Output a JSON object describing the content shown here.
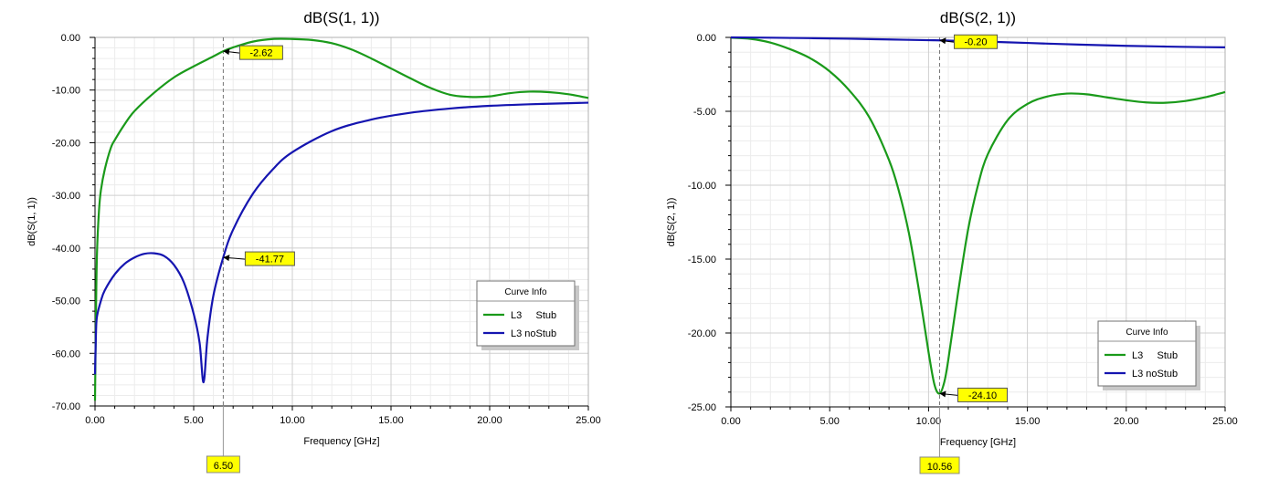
{
  "chart_data": [
    {
      "type": "line",
      "title": "dB(S(1, 1))",
      "xlabel": "Frequency [GHz]",
      "ylabel": "dB(S(1, 1))",
      "xlim": [
        0,
        25
      ],
      "ylim": [
        -70,
        0
      ],
      "xticks": [
        "0.00",
        "5.00",
        "10.00",
        "15.00",
        "20.00",
        "25.00"
      ],
      "yticks": [
        "0.00",
        "-10.00",
        "-20.00",
        "-30.00",
        "-40.00",
        "-50.00",
        "-60.00",
        "-70.00"
      ],
      "grid": true,
      "legend": {
        "title": "Curve Info",
        "placement": "bottom-right",
        "entries": [
          "L3     Stub",
          "L3 noStub"
        ]
      },
      "series": [
        {
          "name": "L3     Stub",
          "color": "#1a9a1a",
          "x": [
            0,
            0.05,
            0.1,
            0.2,
            0.3,
            0.5,
            0.8,
            1,
            1.5,
            2,
            3,
            4,
            5,
            6,
            6.5,
            7,
            8,
            9,
            10,
            11,
            12,
            13,
            14,
            15,
            16,
            17,
            18,
            19,
            20,
            21,
            22,
            23,
            24,
            25
          ],
          "y": [
            -69,
            -52,
            -41,
            -33,
            -29,
            -25,
            -21,
            -19.5,
            -16.5,
            -14,
            -10.5,
            -7.6,
            -5.5,
            -3.6,
            -2.62,
            -1.9,
            -0.8,
            -0.3,
            -0.3,
            -0.5,
            -1.1,
            -2.3,
            -4,
            -5.9,
            -7.8,
            -9.6,
            -10.9,
            -11.3,
            -11.2,
            -10.6,
            -10.3,
            -10.4,
            -10.8,
            -11.5
          ]
        },
        {
          "name": "L3 noStub",
          "color": "#1515b0",
          "x": [
            0,
            0.05,
            0.1,
            0.3,
            0.5,
            1,
            1.5,
            2,
            2.5,
            3,
            3.5,
            4,
            4.5,
            5,
            5.3,
            5.5,
            5.7,
            6,
            6.5,
            7,
            8,
            9,
            10,
            12,
            14,
            16,
            18,
            20,
            22,
            24,
            25
          ],
          "y": [
            -64,
            -56,
            -53,
            -50,
            -48,
            -45,
            -43,
            -41.8,
            -41.1,
            -41,
            -41.5,
            -43.2,
            -46.5,
            -52.5,
            -58,
            -65.5,
            -57,
            -49,
            -41.77,
            -36.5,
            -29.7,
            -25.1,
            -21.8,
            -17.8,
            -15.6,
            -14.3,
            -13.5,
            -13,
            -12.7,
            -12.5,
            -12.4
          ]
        }
      ],
      "markers": [
        {
          "label": "-2.62",
          "x": 6.5,
          "y": -2.62
        },
        {
          "label": "-41.77",
          "x": 6.5,
          "y": -41.77
        }
      ],
      "vline": {
        "x": 6.5,
        "label": "6.50"
      }
    },
    {
      "type": "line",
      "title": "dB(S(2, 1))",
      "xlabel": "Frequency [GHz]",
      "ylabel": "dB(S(2, 1))",
      "xlim": [
        0,
        25
      ],
      "ylim": [
        -25,
        0
      ],
      "xticks": [
        "0.00",
        "5.00",
        "10.00",
        "15.00",
        "20.00",
        "25.00"
      ],
      "yticks": [
        "0.00",
        "-5.00",
        "-10.00",
        "-15.00",
        "-20.00",
        "-25.00"
      ],
      "grid": true,
      "legend": {
        "title": "Curve Info",
        "placement": "bottom-right",
        "entries": [
          "L3     Stub",
          "L3 noStub"
        ]
      },
      "series": [
        {
          "name": "L3     Stub",
          "color": "#1a9a1a",
          "x": [
            0,
            1,
            2,
            3,
            4,
            5,
            6,
            7,
            8,
            8.5,
            9,
            9.5,
            10,
            10.3,
            10.56,
            10.8,
            11,
            11.5,
            12,
            12.5,
            13,
            14,
            15,
            16,
            17,
            18,
            19,
            20,
            21,
            22,
            23,
            24,
            25
          ],
          "y": [
            -0.02,
            -0.1,
            -0.35,
            -0.8,
            -1.4,
            -2.3,
            -3.6,
            -5.4,
            -8.3,
            -10.4,
            -13.2,
            -17,
            -21.3,
            -23.5,
            -24.1,
            -23.3,
            -21.8,
            -17.2,
            -13,
            -10,
            -7.9,
            -5.6,
            -4.5,
            -4,
            -3.8,
            -3.85,
            -4.05,
            -4.25,
            -4.4,
            -4.42,
            -4.3,
            -4.05,
            -3.7
          ]
        },
        {
          "name": "L3 noStub",
          "color": "#1515b0",
          "x": [
            0,
            2,
            4,
            6,
            8,
            10,
            10.56,
            12,
            14,
            16,
            18,
            20,
            22,
            24,
            25
          ],
          "y": [
            0,
            -0.02,
            -0.05,
            -0.09,
            -0.14,
            -0.19,
            -0.2,
            -0.25,
            -0.33,
            -0.42,
            -0.5,
            -0.57,
            -0.62,
            -0.66,
            -0.67
          ]
        }
      ],
      "markers": [
        {
          "label": "-0.20",
          "x": 10.56,
          "y": -0.2
        },
        {
          "label": "-24.10",
          "x": 10.56,
          "y": -24.1
        }
      ],
      "vline": {
        "x": 10.56,
        "label": "10.56"
      }
    }
  ]
}
